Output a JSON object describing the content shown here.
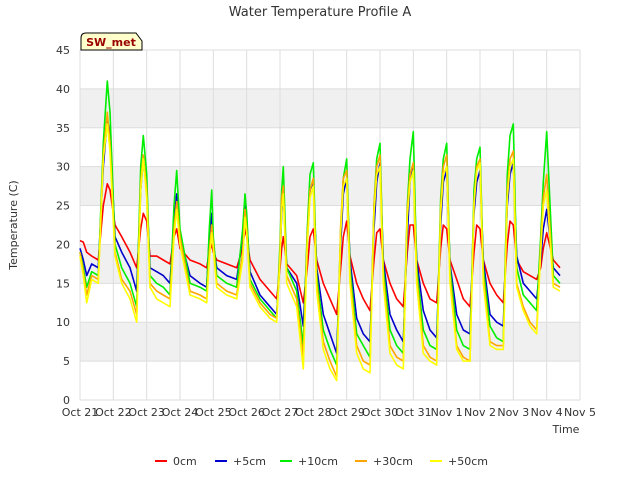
{
  "chart_data": {
    "type": "line",
    "title": "Water Temperature Profile A",
    "xlabel": "Time",
    "ylabel": "Temperature (C)",
    "badge": "SW_met",
    "x_tick_labels": [
      "Oct 21",
      "Oct 22",
      "Oct 23",
      "Oct 24",
      "Oct 25",
      "Oct 26",
      "Oct 27",
      "Oct 28",
      "Oct 29",
      "Oct 30",
      "Oct 31",
      "Nov 1",
      "Nov 2",
      "Nov 3",
      "Nov 4",
      "Nov 5"
    ],
    "y_ticks": [
      0,
      5,
      10,
      15,
      20,
      25,
      30,
      35,
      40,
      45
    ],
    "xlim": [
      0,
      15
    ],
    "ylim": [
      0,
      45
    ],
    "grid": true,
    "legend_position": "bottom",
    "series": [
      {
        "name": "0cm",
        "color": "#ff0000",
        "x": [
          0.0,
          0.1,
          0.2,
          0.35,
          0.55,
          0.7,
          0.82,
          0.9,
          1.05,
          1.25,
          1.5,
          1.7,
          1.82,
          1.9,
          2.0,
          2.1,
          2.3,
          2.5,
          2.7,
          2.82,
          2.9,
          3.0,
          3.3,
          3.6,
          3.8,
          3.88,
          3.95,
          4.0,
          4.1,
          4.4,
          4.7,
          4.88,
          4.95,
          5.0,
          5.1,
          5.4,
          5.7,
          5.9,
          6.0,
          6.05,
          6.1,
          6.2,
          6.5,
          6.7,
          6.82,
          6.9,
          7.0,
          7.1,
          7.3,
          7.5,
          7.7,
          7.82,
          7.9,
          8.0,
          8.1,
          8.3,
          8.5,
          8.7,
          8.82,
          8.9,
          9.0,
          9.1,
          9.3,
          9.5,
          9.7,
          9.82,
          9.9,
          10.0,
          10.1,
          10.3,
          10.5,
          10.7,
          10.82,
          10.9,
          11.0,
          11.1,
          11.3,
          11.5,
          11.7,
          11.82,
          11.9,
          12.0,
          12.1,
          12.3,
          12.5,
          12.7,
          12.82,
          12.9,
          13.0,
          13.1,
          13.3,
          13.5,
          13.7,
          13.82,
          13.9,
          14.0,
          14.2,
          14.4
        ],
        "y": [
          20.5,
          20.3,
          19.0,
          18.5,
          18.0,
          25.0,
          27.8,
          27.0,
          22.5,
          21.0,
          19.0,
          17.0,
          22.0,
          24.0,
          23.0,
          18.5,
          18.5,
          18.0,
          17.5,
          21.0,
          22.0,
          19.5,
          18.0,
          17.5,
          17.0,
          19.0,
          20.0,
          19.0,
          18.0,
          17.5,
          17.0,
          19.5,
          22.0,
          21.0,
          18.0,
          15.5,
          14.0,
          13.0,
          17.0,
          19.5,
          21.0,
          17.5,
          16.0,
          12.5,
          17.0,
          21.0,
          22.0,
          18.0,
          15.0,
          13.0,
          11.0,
          17.0,
          21.0,
          23.0,
          18.5,
          15.0,
          13.0,
          11.5,
          18.0,
          21.5,
          22.0,
          18.0,
          15.0,
          13.0,
          12.0,
          19.0,
          22.5,
          22.5,
          18.0,
          15.0,
          13.0,
          12.5,
          19.5,
          22.5,
          22.0,
          18.0,
          15.5,
          13.0,
          12.0,
          19.0,
          22.5,
          22.0,
          18.0,
          15.0,
          13.5,
          12.5,
          20.0,
          23.0,
          22.5,
          18.0,
          16.5,
          16.0,
          15.5,
          17.0,
          19.5,
          21.5,
          18.0,
          17.0
        ]
      },
      {
        "name": "+5cm",
        "color": "#0000cc",
        "x": [
          0.0,
          0.1,
          0.2,
          0.35,
          0.55,
          0.7,
          0.82,
          0.9,
          1.05,
          1.25,
          1.5,
          1.7,
          1.82,
          1.9,
          2.0,
          2.1,
          2.3,
          2.5,
          2.7,
          2.82,
          2.9,
          3.0,
          3.3,
          3.6,
          3.8,
          3.88,
          3.95,
          4.0,
          4.1,
          4.4,
          4.7,
          4.88,
          4.95,
          5.0,
          5.1,
          5.4,
          5.7,
          5.9,
          6.0,
          6.05,
          6.1,
          6.2,
          6.5,
          6.7,
          6.82,
          6.9,
          7.0,
          7.1,
          7.3,
          7.5,
          7.7,
          7.82,
          7.9,
          8.0,
          8.1,
          8.3,
          8.5,
          8.7,
          8.82,
          8.9,
          9.0,
          9.1,
          9.3,
          9.5,
          9.7,
          9.82,
          9.9,
          10.0,
          10.1,
          10.3,
          10.5,
          10.7,
          10.82,
          10.9,
          11.0,
          11.1,
          11.3,
          11.5,
          11.7,
          11.82,
          11.9,
          12.0,
          12.1,
          12.3,
          12.5,
          12.7,
          12.82,
          12.9,
          13.0,
          13.1,
          13.3,
          13.5,
          13.7,
          13.82,
          13.9,
          14.0,
          14.2,
          14.4
        ],
        "y": [
          19.5,
          18.0,
          16.0,
          17.5,
          17.0,
          30.0,
          36.0,
          34.5,
          21.0,
          19.0,
          17.0,
          14.0,
          27.0,
          31.0,
          27.0,
          17.0,
          16.5,
          16.0,
          15.0,
          23.0,
          26.5,
          21.0,
          16.0,
          15.0,
          14.5,
          21.0,
          24.0,
          20.0,
          17.0,
          16.0,
          15.5,
          21.0,
          25.0,
          23.0,
          16.5,
          13.5,
          12.0,
          11.0,
          18.0,
          24.0,
          27.0,
          17.0,
          15.0,
          9.5,
          20.0,
          27.0,
          28.0,
          17.0,
          11.0,
          8.5,
          6.0,
          20.0,
          26.5,
          28.5,
          18.0,
          10.5,
          8.5,
          7.5,
          22.0,
          28.0,
          30.5,
          18.0,
          11.0,
          9.0,
          7.5,
          21.0,
          28.0,
          30.0,
          18.0,
          11.5,
          9.0,
          8.0,
          22.5,
          28.0,
          29.5,
          17.5,
          11.0,
          9.0,
          8.5,
          24.0,
          28.0,
          29.5,
          18.0,
          11.0,
          10.0,
          9.5,
          25.0,
          29.0,
          30.5,
          18.5,
          15.0,
          14.0,
          13.0,
          18.0,
          22.0,
          24.5,
          17.0,
          16.0
        ]
      },
      {
        "name": "+10cm",
        "color": "#00ee00",
        "x": [
          0.0,
          0.1,
          0.2,
          0.35,
          0.55,
          0.7,
          0.82,
          0.9,
          1.05,
          1.25,
          1.5,
          1.7,
          1.82,
          1.9,
          2.0,
          2.1,
          2.3,
          2.5,
          2.7,
          2.82,
          2.9,
          3.0,
          3.3,
          3.6,
          3.8,
          3.88,
          3.95,
          4.0,
          4.1,
          4.4,
          4.7,
          4.88,
          4.95,
          5.0,
          5.1,
          5.4,
          5.7,
          5.9,
          6.0,
          6.05,
          6.1,
          6.2,
          6.5,
          6.7,
          6.82,
          6.9,
          7.0,
          7.1,
          7.3,
          7.5,
          7.7,
          7.82,
          7.9,
          8.0,
          8.1,
          8.3,
          8.5,
          8.7,
          8.82,
          8.9,
          9.0,
          9.1,
          9.3,
          9.5,
          9.7,
          9.82,
          9.9,
          10.0,
          10.1,
          10.3,
          10.5,
          10.7,
          10.82,
          10.9,
          11.0,
          11.1,
          11.3,
          11.5,
          11.7,
          11.82,
          11.9,
          12.0,
          12.1,
          12.3,
          12.5,
          12.7,
          12.82,
          12.9,
          13.0,
          13.1,
          13.3,
          13.5,
          13.7,
          13.82,
          13.9,
          14.0,
          14.2,
          14.4
        ],
        "y": [
          19.0,
          17.0,
          14.5,
          16.5,
          16.0,
          33.0,
          41.0,
          37.0,
          20.0,
          17.0,
          15.0,
          12.0,
          30.0,
          34.0,
          29.0,
          16.0,
          15.0,
          14.5,
          13.5,
          25.0,
          29.5,
          22.0,
          15.0,
          14.5,
          14.0,
          22.0,
          27.0,
          21.0,
          16.0,
          15.0,
          14.5,
          22.0,
          26.5,
          24.0,
          15.5,
          13.0,
          11.5,
          10.5,
          20.0,
          27.0,
          30.0,
          17.0,
          14.0,
          7.0,
          22.0,
          29.0,
          30.5,
          16.0,
          9.0,
          6.5,
          4.5,
          22.0,
          28.5,
          31.0,
          17.0,
          8.5,
          7.0,
          5.5,
          25.0,
          31.0,
          33.0,
          17.0,
          9.0,
          7.0,
          6.0,
          25.0,
          31.0,
          34.5,
          17.0,
          9.0,
          7.0,
          6.5,
          26.0,
          31.0,
          33.0,
          17.0,
          9.0,
          7.0,
          6.5,
          27.0,
          31.0,
          32.5,
          17.0,
          9.5,
          8.0,
          7.5,
          29.0,
          34.0,
          35.5,
          17.0,
          13.5,
          12.5,
          11.5,
          21.0,
          28.0,
          34.5,
          16.0,
          15.0
        ]
      },
      {
        "name": "+30cm",
        "color": "#ffa500",
        "x": [
          0.0,
          0.1,
          0.2,
          0.35,
          0.55,
          0.7,
          0.82,
          0.9,
          1.05,
          1.25,
          1.5,
          1.7,
          1.82,
          1.9,
          2.0,
          2.1,
          2.3,
          2.5,
          2.7,
          2.82,
          2.9,
          3.0,
          3.3,
          3.6,
          3.8,
          3.88,
          3.95,
          4.0,
          4.1,
          4.4,
          4.7,
          4.88,
          4.95,
          5.0,
          5.1,
          5.4,
          5.7,
          5.9,
          6.0,
          6.05,
          6.1,
          6.2,
          6.5,
          6.7,
          6.82,
          6.9,
          7.0,
          7.1,
          7.3,
          7.5,
          7.7,
          7.82,
          7.9,
          8.0,
          8.1,
          8.3,
          8.5,
          8.7,
          8.82,
          8.9,
          9.0,
          9.1,
          9.3,
          9.5,
          9.7,
          9.82,
          9.9,
          10.0,
          10.1,
          10.3,
          10.5,
          10.7,
          10.82,
          10.9,
          11.0,
          11.1,
          11.3,
          11.5,
          11.7,
          11.82,
          11.9,
          12.0,
          12.1,
          12.3,
          12.5,
          12.7,
          12.82,
          12.9,
          13.0,
          13.1,
          13.3,
          13.5,
          13.7,
          13.82,
          13.9,
          14.0,
          14.2,
          14.4
        ],
        "y": [
          19.0,
          16.5,
          13.5,
          16.0,
          15.5,
          31.5,
          37.0,
          33.0,
          19.0,
          15.5,
          14.0,
          11.0,
          28.0,
          31.5,
          27.0,
          15.0,
          14.0,
          13.5,
          13.0,
          22.0,
          25.5,
          21.0,
          14.0,
          13.5,
          13.0,
          19.0,
          22.5,
          20.0,
          15.0,
          14.0,
          13.5,
          19.0,
          24.5,
          22.0,
          15.0,
          12.5,
          11.0,
          10.5,
          19.0,
          26.0,
          27.5,
          16.0,
          13.0,
          5.5,
          21.0,
          27.0,
          28.5,
          15.0,
          7.5,
          5.0,
          3.0,
          22.5,
          28.5,
          29.5,
          16.0,
          7.0,
          5.0,
          4.5,
          25.0,
          30.0,
          31.5,
          16.0,
          7.0,
          5.5,
          5.0,
          24.5,
          29.0,
          30.5,
          16.0,
          7.0,
          5.5,
          5.0,
          25.0,
          30.0,
          31.5,
          16.0,
          7.0,
          5.5,
          5.0,
          25.5,
          30.0,
          31.0,
          16.0,
          7.5,
          7.0,
          7.0,
          27.0,
          31.0,
          32.0,
          15.0,
          12.0,
          10.0,
          9.0,
          20.0,
          26.0,
          29.0,
          15.0,
          14.5
        ]
      },
      {
        "name": "+50cm",
        "color": "#ffff00",
        "x": [
          0.0,
          0.1,
          0.2,
          0.35,
          0.55,
          0.7,
          0.82,
          0.9,
          1.05,
          1.25,
          1.5,
          1.7,
          1.82,
          1.9,
          2.0,
          2.1,
          2.3,
          2.5,
          2.7,
          2.82,
          2.9,
          3.0,
          3.3,
          3.6,
          3.8,
          3.88,
          3.95,
          4.0,
          4.1,
          4.4,
          4.7,
          4.88,
          4.95,
          5.0,
          5.1,
          5.4,
          5.7,
          5.9,
          6.0,
          6.05,
          6.1,
          6.2,
          6.5,
          6.7,
          6.82,
          6.9,
          7.0,
          7.1,
          7.3,
          7.5,
          7.7,
          7.82,
          7.9,
          8.0,
          8.1,
          8.3,
          8.5,
          8.7,
          8.82,
          8.9,
          9.0,
          9.1,
          9.3,
          9.5,
          9.7,
          9.82,
          9.9,
          10.0,
          10.1,
          10.3,
          10.5,
          10.7,
          10.82,
          10.9,
          11.0,
          11.1,
          11.3,
          11.5,
          11.7,
          11.82,
          11.9,
          12.0,
          12.1,
          12.3,
          12.5,
          12.7,
          12.82,
          12.9,
          13.0,
          13.1,
          13.3,
          13.5,
          13.7,
          13.82,
          13.9,
          14.0,
          14.2,
          14.4
        ],
        "y": [
          18.5,
          16.0,
          12.5,
          15.5,
          15.0,
          31.0,
          35.5,
          32.0,
          18.5,
          15.0,
          13.0,
          10.0,
          27.0,
          31.0,
          26.0,
          14.5,
          13.0,
          12.5,
          12.0,
          21.0,
          24.5,
          20.0,
          13.5,
          13.0,
          12.5,
          18.0,
          21.5,
          19.5,
          14.5,
          13.5,
          13.0,
          18.0,
          23.5,
          21.5,
          14.5,
          12.0,
          10.5,
          10.0,
          18.0,
          24.5,
          26.5,
          15.0,
          12.0,
          4.0,
          20.0,
          26.0,
          27.5,
          14.0,
          6.5,
          4.0,
          2.5,
          21.5,
          27.5,
          28.5,
          15.0,
          6.0,
          4.0,
          3.5,
          24.0,
          29.0,
          30.0,
          15.0,
          6.0,
          4.5,
          4.0,
          23.5,
          28.0,
          29.5,
          15.0,
          6.0,
          5.0,
          4.5,
          24.0,
          29.0,
          30.0,
          15.0,
          6.5,
          5.0,
          5.0,
          25.0,
          29.5,
          30.5,
          15.0,
          7.0,
          6.5,
          6.5,
          26.0,
          30.0,
          31.0,
          14.5,
          11.5,
          9.5,
          8.5,
          19.0,
          25.0,
          27.0,
          14.5,
          14.0
        ]
      }
    ]
  }
}
